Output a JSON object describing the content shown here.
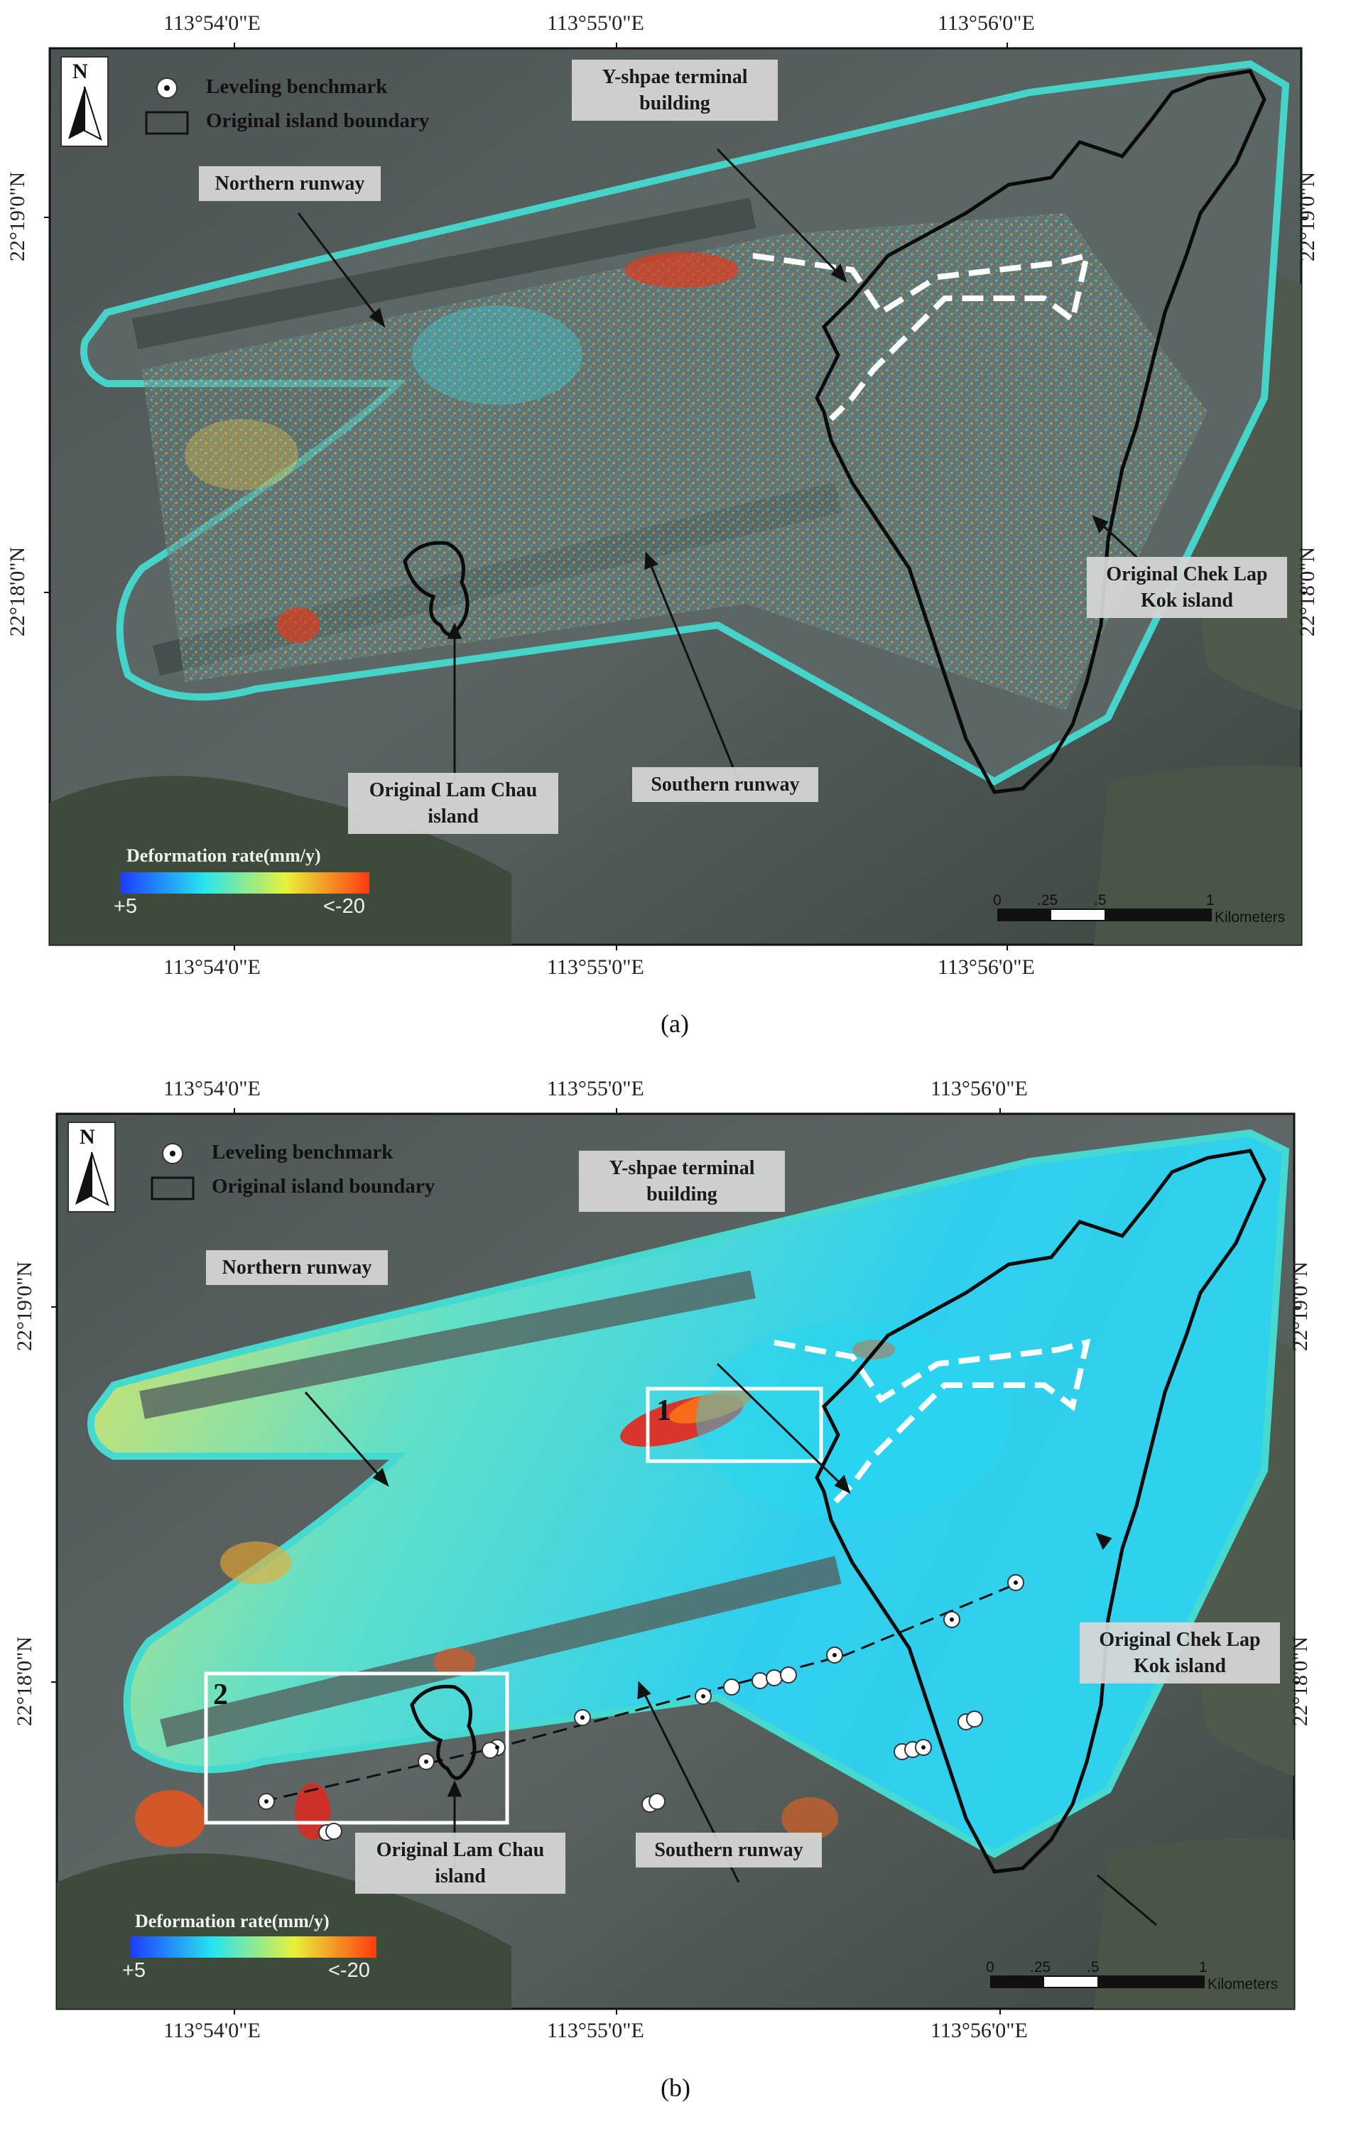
{
  "panels": [
    {
      "id": "a",
      "label": "(a)",
      "lon_ticks": [
        "113°54'0\"E",
        "113°55'0\"E",
        "113°56'0\"E"
      ],
      "lat_ticks": [
        "22°19'0\"N",
        "22°18'0\"N"
      ],
      "north_arrow": "N",
      "legend": {
        "benchmark_label": "Leveling benchmark",
        "boundary_label": "Original island boundary"
      },
      "callouts": {
        "northern_runway": "Northern runway",
        "terminal_line1": "Y-shpae terminal",
        "terminal_line2": "building",
        "chek_lap_kok_line1": "Original Chek Lap",
        "chek_lap_kok_line2": "Kok island",
        "lam_chau_line1": "Original Lam Chau",
        "lam_chau_line2": "island",
        "southern_runway": "Southern runway"
      },
      "colorbar": {
        "title": "Deformation rate(mm/y)",
        "min_label": "+5",
        "max_label": "<-20",
        "colors": [
          "#1d3cff",
          "#28e4f0",
          "#e9f03a",
          "#ff3a10"
        ]
      },
      "scale_bar": {
        "ticks": [
          "0",
          ".25",
          ".5",
          "1"
        ],
        "unit": "Kilometers"
      }
    },
    {
      "id": "b",
      "label": "(b)",
      "lon_ticks": [
        "113°54'0\"E",
        "113°55'0\"E",
        "113°56'0\"E"
      ],
      "lat_ticks": [
        "22°19'0\"N",
        "22°18'0\"N"
      ],
      "north_arrow": "N",
      "legend": {
        "benchmark_label": "Leveling benchmark",
        "boundary_label": "Original island boundary"
      },
      "callouts": {
        "northern_runway": "Northern runway",
        "terminal_line1": "Y-shpae terminal",
        "terminal_line2": "building",
        "chek_lap_kok_line1": "Original Chek Lap",
        "chek_lap_kok_line2": "Kok island",
        "lam_chau_line1": "Original Lam Chau",
        "lam_chau_line2": "island",
        "southern_runway": "Southern runway"
      },
      "zones": [
        "1",
        "2"
      ],
      "colorbar": {
        "title": "Deformation rate(mm/y)",
        "min_label": "+5",
        "max_label": "<-20",
        "colors": [
          "#1d3cff",
          "#28e4f0",
          "#e9f03a",
          "#ff3a10"
        ]
      },
      "scale_bar": {
        "ticks": [
          "0",
          ".25",
          ".5",
          "1"
        ],
        "unit": "Kilometers"
      }
    }
  ]
}
